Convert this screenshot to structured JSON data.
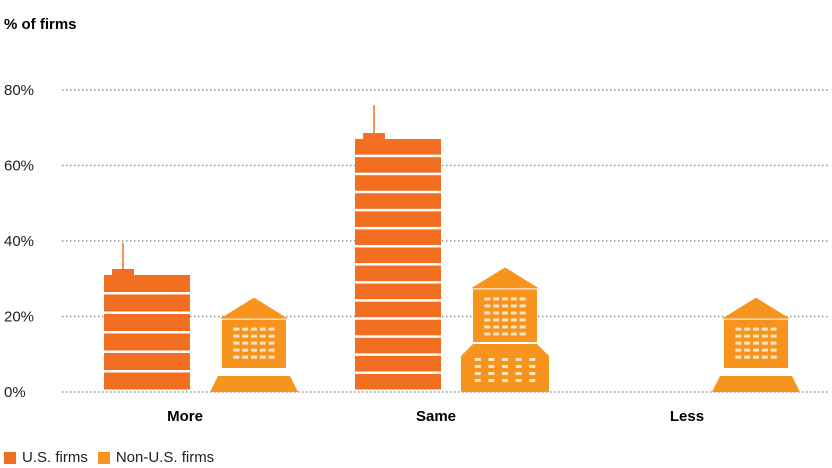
{
  "chart_data": {
    "type": "bar",
    "title": "% of firms",
    "categories": [
      "More",
      "Same",
      "Less"
    ],
    "yticks": [
      "0%",
      "20%",
      "40%",
      "60%",
      "80%"
    ],
    "ylim": [
      0,
      80
    ],
    "grid": true,
    "series": [
      {
        "name": "U.S. firms",
        "color": "#f26f21",
        "values": [
          31,
          67,
          0
        ]
      },
      {
        "name": "Non-U.S. firms",
        "color": "#f7941d",
        "values": [
          25,
          33,
          25
        ]
      }
    ],
    "legend_position": "bottom-left"
  }
}
